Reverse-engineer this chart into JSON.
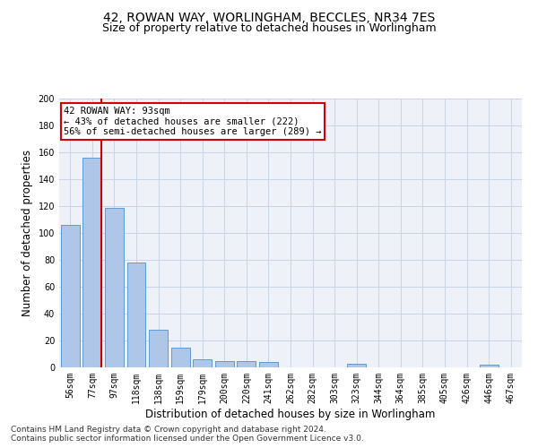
{
  "title1": "42, ROWAN WAY, WORLINGHAM, BECCLES, NR34 7ES",
  "title2": "Size of property relative to detached houses in Worlingham",
  "xlabel": "Distribution of detached houses by size in Worlingham",
  "ylabel": "Number of detached properties",
  "categories": [
    "56sqm",
    "77sqm",
    "97sqm",
    "118sqm",
    "138sqm",
    "159sqm",
    "179sqm",
    "200sqm",
    "220sqm",
    "241sqm",
    "262sqm",
    "282sqm",
    "303sqm",
    "323sqm",
    "344sqm",
    "364sqm",
    "385sqm",
    "405sqm",
    "426sqm",
    "446sqm",
    "467sqm"
  ],
  "values": [
    106,
    156,
    119,
    78,
    28,
    15,
    6,
    5,
    5,
    4,
    0,
    0,
    0,
    3,
    0,
    0,
    0,
    0,
    0,
    2,
    0
  ],
  "bar_color": "#aec6e8",
  "bar_edge_color": "#5b9bd5",
  "grid_color": "#c8d4e8",
  "bg_color": "#eef2f8",
  "annotation_text": "42 ROWAN WAY: 93sqm\n← 43% of detached houses are smaller (222)\n56% of semi-detached houses are larger (289) →",
  "annotation_box_color": "#ffffff",
  "annotation_box_edge": "#cc0000",
  "vline_color": "#cc0000",
  "ylim": [
    0,
    200
  ],
  "yticks": [
    0,
    20,
    40,
    60,
    80,
    100,
    120,
    140,
    160,
    180,
    200
  ],
  "footer1": "Contains HM Land Registry data © Crown copyright and database right 2024.",
  "footer2": "Contains public sector information licensed under the Open Government Licence v3.0.",
  "title1_fontsize": 10,
  "title2_fontsize": 9,
  "xlabel_fontsize": 8.5,
  "ylabel_fontsize": 8.5,
  "tick_fontsize": 7,
  "footer_fontsize": 6.5,
  "annotation_fontsize": 7.5
}
